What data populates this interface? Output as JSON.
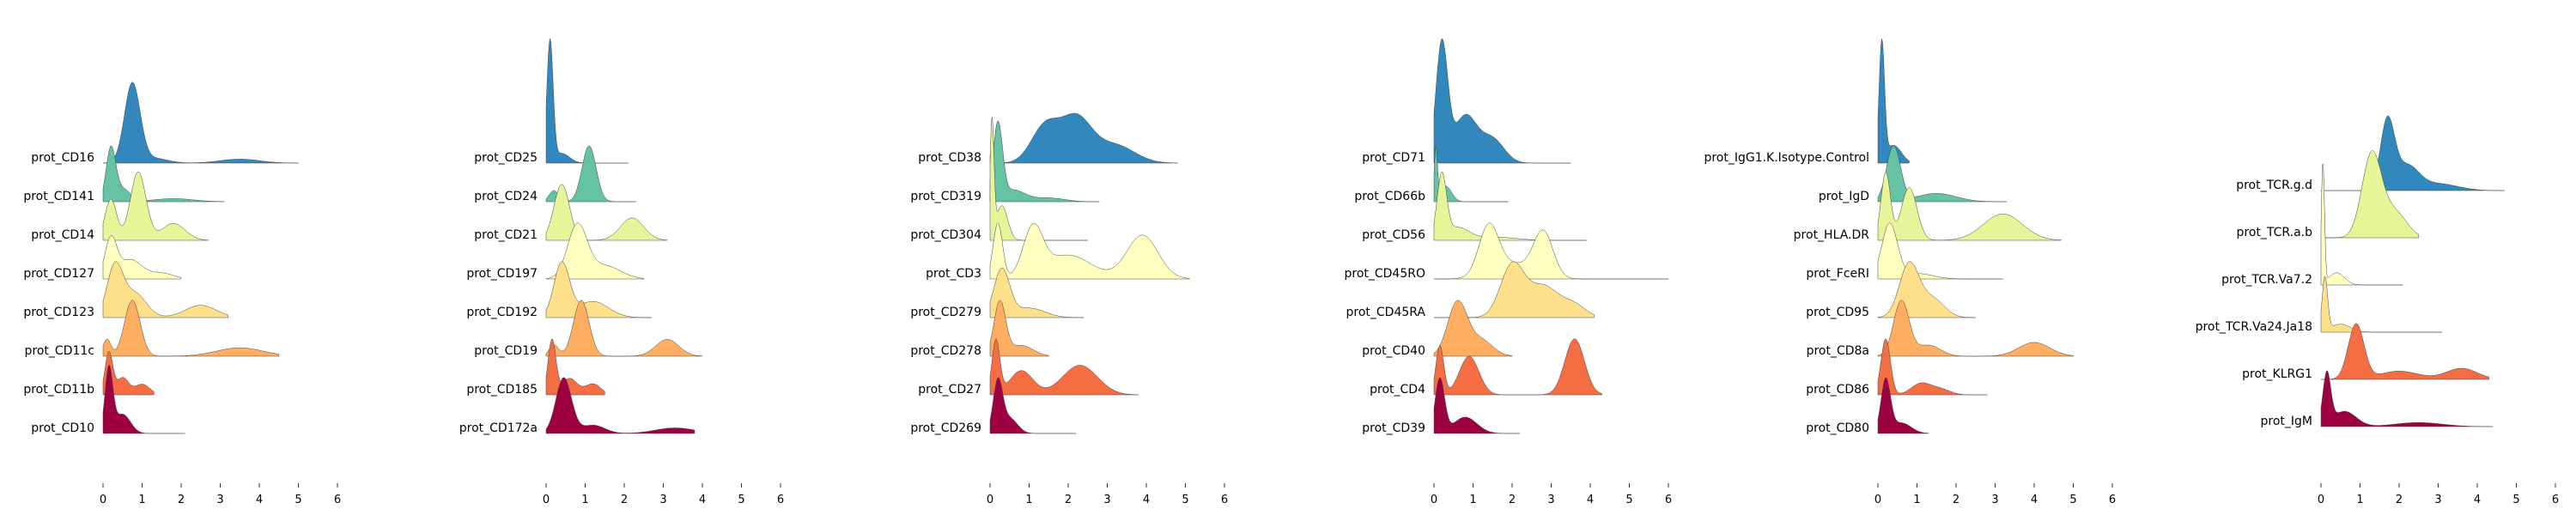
{
  "chart_data": [
    {
      "type": "ridgeline",
      "xlim": [
        0,
        6
      ],
      "x_ticks": [
        "0",
        "1",
        "2",
        "3",
        "4",
        "5",
        "6"
      ],
      "series": [
        {
          "name": "prot_CD16",
          "color": "#3288bd",
          "peaks": [
            [
              0.75,
              0.2,
              1.0
            ],
            [
              1.3,
              0.35,
              0.06
            ],
            [
              3.5,
              0.5,
              0.05
            ]
          ],
          "xmax": 5.0
        },
        {
          "name": "prot_CD141",
          "color": "#66c2a5",
          "peaks": [
            [
              0.2,
              0.12,
              1.0
            ],
            [
              0.5,
              0.2,
              0.25
            ],
            [
              1.8,
              0.5,
              0.06
            ]
          ],
          "xmax": 3.1
        },
        {
          "name": "prot_CD14",
          "color": "#e6f598",
          "peaks": [
            [
              0.2,
              0.15,
              0.6
            ],
            [
              0.9,
              0.2,
              1.0
            ],
            [
              1.8,
              0.3,
              0.25
            ]
          ],
          "xmax": 2.7
        },
        {
          "name": "prot_CD127",
          "color": "#ffffbf",
          "peaks": [
            [
              0.2,
              0.15,
              1.0
            ],
            [
              0.7,
              0.3,
              0.5
            ],
            [
              1.5,
              0.3,
              0.15
            ]
          ],
          "xmax": 2.0
        },
        {
          "name": "prot_CD123",
          "color": "#fee08b",
          "peaks": [
            [
              0.3,
              0.2,
              1.0
            ],
            [
              0.8,
              0.3,
              0.5
            ],
            [
              2.5,
              0.4,
              0.25
            ]
          ],
          "xmax": 3.2
        },
        {
          "name": "prot_CD11c",
          "color": "#fdae61",
          "peaks": [
            [
              0.1,
              0.1,
              0.3
            ],
            [
              0.75,
              0.2,
              1.0
            ],
            [
              3.5,
              0.6,
              0.15
            ]
          ],
          "xmax": 4.5
        },
        {
          "name": "prot_CD11b",
          "color": "#f46d43",
          "peaks": [
            [
              0.15,
              0.1,
              1.0
            ],
            [
              0.5,
              0.15,
              0.4
            ],
            [
              1.0,
              0.2,
              0.25
            ]
          ],
          "xmax": 1.3
        },
        {
          "name": "prot_CD10",
          "color": "#9e0142",
          "peaks": [
            [
              0.15,
              0.1,
              1.0
            ],
            [
              0.5,
              0.2,
              0.3
            ]
          ],
          "xmax": 2.1
        }
      ]
    },
    {
      "type": "ridgeline",
      "xlim": [
        0,
        6
      ],
      "x_ticks": [
        "0",
        "1",
        "2",
        "3",
        "4",
        "5",
        "6"
      ],
      "series": [
        {
          "name": "prot_CD25",
          "color": "#3288bd",
          "peaks": [
            [
              0.1,
              0.08,
              1.0
            ],
            [
              0.4,
              0.2,
              0.08
            ]
          ],
          "xmax": 2.1
        },
        {
          "name": "prot_CD24",
          "color": "#66c2a5",
          "peaks": [
            [
              0.2,
              0.12,
              0.2
            ],
            [
              1.1,
              0.18,
              1.0
            ]
          ],
          "xmax": 2.3
        },
        {
          "name": "prot_CD21",
          "color": "#e6f598",
          "peaks": [
            [
              0.4,
              0.2,
              1.0
            ],
            [
              2.2,
              0.3,
              0.4
            ]
          ],
          "xmax": 3.1
        },
        {
          "name": "prot_CD197",
          "color": "#ffffbf",
          "peaks": [
            [
              0.8,
              0.25,
              1.0
            ],
            [
              1.5,
              0.4,
              0.25
            ]
          ],
          "xmax": 2.5
        },
        {
          "name": "prot_CD192",
          "color": "#fee08b",
          "peaks": [
            [
              0.4,
              0.2,
              1.0
            ],
            [
              1.2,
              0.4,
              0.3
            ]
          ],
          "xmax": 2.7
        },
        {
          "name": "prot_CD19",
          "color": "#fdae61",
          "peaks": [
            [
              0.2,
              0.12,
              0.2
            ],
            [
              0.9,
              0.2,
              1.0
            ],
            [
              3.1,
              0.3,
              0.3
            ]
          ],
          "xmax": 4.0
        },
        {
          "name": "prot_CD185",
          "color": "#f46d43",
          "peaks": [
            [
              0.15,
              0.1,
              1.0
            ],
            [
              0.6,
              0.2,
              0.3
            ],
            [
              1.2,
              0.2,
              0.2
            ]
          ],
          "xmax": 1.5
        },
        {
          "name": "prot_CD172a",
          "color": "#9e0142",
          "peaks": [
            [
              0.45,
              0.2,
              1.0
            ],
            [
              1.2,
              0.3,
              0.15
            ],
            [
              3.3,
              0.5,
              0.1
            ]
          ],
          "xmax": 3.8
        }
      ]
    },
    {
      "type": "ridgeline",
      "xlim": [
        0,
        6
      ],
      "x_ticks": [
        "0",
        "1",
        "2",
        "3",
        "4",
        "5",
        "6"
      ],
      "series": [
        {
          "name": "prot_CD38",
          "color": "#3288bd",
          "peaks": [
            [
              0.1,
              0.08,
              0.3
            ],
            [
              1.4,
              0.35,
              0.6
            ],
            [
              2.2,
              0.4,
              0.75
            ],
            [
              3.2,
              0.5,
              0.3
            ]
          ],
          "xmax": 4.8
        },
        {
          "name": "prot_CD319",
          "color": "#66c2a5",
          "peaks": [
            [
              0.2,
              0.12,
              1.0
            ],
            [
              0.6,
              0.3,
              0.15
            ],
            [
              1.5,
              0.4,
              0.05
            ]
          ],
          "xmax": 2.8
        },
        {
          "name": "prot_CD304",
          "color": "#e6f598",
          "peaks": [
            [
              0.05,
              0.05,
              1.0
            ],
            [
              0.3,
              0.15,
              0.3
            ]
          ],
          "xmax": 2.5
        },
        {
          "name": "prot_CD3",
          "color": "#ffffbf",
          "peaks": [
            [
              0.2,
              0.12,
              0.7
            ],
            [
              1.1,
              0.25,
              0.6
            ],
            [
              2.0,
              0.6,
              0.3
            ],
            [
              3.9,
              0.4,
              0.55
            ]
          ],
          "xmax": 5.1
        },
        {
          "name": "prot_CD279",
          "color": "#fee08b",
          "peaks": [
            [
              0.3,
              0.2,
              1.0
            ],
            [
              1.0,
              0.4,
              0.2
            ]
          ],
          "xmax": 2.4
        },
        {
          "name": "prot_CD278",
          "color": "#fdae61",
          "peaks": [
            [
              0.25,
              0.15,
              1.0
            ],
            [
              0.8,
              0.3,
              0.2
            ]
          ],
          "xmax": 1.5
        },
        {
          "name": "prot_CD27",
          "color": "#f46d43",
          "peaks": [
            [
              0.15,
              0.1,
              1.0
            ],
            [
              0.8,
              0.3,
              0.45
            ],
            [
              2.3,
              0.45,
              0.55
            ]
          ],
          "xmax": 3.8
        },
        {
          "name": "prot_CD269",
          "color": "#9e0142",
          "peaks": [
            [
              0.2,
              0.12,
              1.0
            ],
            [
              0.5,
              0.2,
              0.3
            ]
          ],
          "xmax": 2.2
        }
      ]
    },
    {
      "type": "ridgeline",
      "xlim": [
        0,
        6
      ],
      "x_ticks": [
        "0",
        "1",
        "2",
        "3",
        "4",
        "5",
        "6"
      ],
      "series": [
        {
          "name": "prot_CD71",
          "color": "#3288bd",
          "peaks": [
            [
              0.2,
              0.15,
              1.0
            ],
            [
              0.8,
              0.3,
              0.4
            ],
            [
              1.5,
              0.3,
              0.2
            ]
          ],
          "xmax": 3.5
        },
        {
          "name": "prot_CD66b",
          "color": "#66c2a5",
          "peaks": [
            [
              0.05,
              0.04,
              1.0
            ],
            [
              0.3,
              0.15,
              0.3
            ]
          ],
          "xmax": 1.9
        },
        {
          "name": "prot_CD56",
          "color": "#e6f598",
          "peaks": [
            [
              0.2,
              0.12,
              1.0
            ],
            [
              0.6,
              0.3,
              0.2
            ],
            [
              1.6,
              0.5,
              0.05
            ]
          ],
          "xmax": 3.9
        },
        {
          "name": "prot_CD45RO",
          "color": "#ffffbf",
          "peaks": [
            [
              1.4,
              0.25,
              0.65
            ],
            [
              2.8,
              0.25,
              0.6
            ],
            [
              2.0,
              0.5,
              0.2
            ]
          ],
          "xmax": 6.0
        },
        {
          "name": "prot_CD45RA",
          "color": "#fee08b",
          "peaks": [
            [
              2.0,
              0.3,
              0.9
            ],
            [
              2.8,
              0.4,
              0.55
            ],
            [
              3.6,
              0.3,
              0.2
            ]
          ],
          "xmax": 4.1
        },
        {
          "name": "prot_CD40",
          "color": "#fdae61",
          "peaks": [
            [
              0.6,
              0.25,
              1.0
            ],
            [
              1.2,
              0.3,
              0.3
            ]
          ],
          "xmax": 2.0
        },
        {
          "name": "prot_CD4",
          "color": "#f46d43",
          "peaks": [
            [
              0.15,
              0.1,
              0.7
            ],
            [
              0.9,
              0.25,
              0.55
            ],
            [
              3.6,
              0.25,
              0.8
            ]
          ],
          "xmax": 4.3
        },
        {
          "name": "prot_CD39",
          "color": "#9e0142",
          "peaks": [
            [
              0.15,
              0.12,
              1.0
            ],
            [
              0.8,
              0.3,
              0.3
            ]
          ],
          "xmax": 2.2
        }
      ]
    },
    {
      "type": "ridgeline",
      "xlim": [
        0,
        6
      ],
      "x_ticks": [
        "0",
        "1",
        "2",
        "3",
        "4",
        "5",
        "6"
      ],
      "series": [
        {
          "name": "prot_IgG1.K.Isotype.Control",
          "color": "#3288bd",
          "peaks": [
            [
              0.1,
              0.07,
              1.0
            ],
            [
              0.4,
              0.2,
              0.15
            ]
          ],
          "xmax": 0.8
        },
        {
          "name": "prot_IgD",
          "color": "#66c2a5",
          "peaks": [
            [
              0.4,
              0.18,
              1.0
            ],
            [
              1.5,
              0.5,
              0.15
            ]
          ],
          "xmax": 3.3
        },
        {
          "name": "prot_HLA.DR",
          "color": "#e6f598",
          "peaks": [
            [
              0.2,
              0.12,
              0.9
            ],
            [
              0.8,
              0.2,
              0.7
            ],
            [
              3.2,
              0.5,
              0.35
            ]
          ],
          "xmax": 4.7
        },
        {
          "name": "prot_FceRI",
          "color": "#ffffbf",
          "peaks": [
            [
              0.3,
              0.2,
              1.0
            ],
            [
              1.0,
              0.4,
              0.1
            ]
          ],
          "xmax": 3.2
        },
        {
          "name": "prot_CD95",
          "color": "#fee08b",
          "peaks": [
            [
              0.8,
              0.25,
              1.0
            ],
            [
              1.4,
              0.3,
              0.35
            ]
          ],
          "xmax": 2.5
        },
        {
          "name": "prot_CD8a",
          "color": "#fdae61",
          "peaks": [
            [
              0.6,
              0.2,
              1.0
            ],
            [
              1.3,
              0.3,
              0.2
            ],
            [
              4.0,
              0.4,
              0.25
            ]
          ],
          "xmax": 5.0
        },
        {
          "name": "prot_CD86",
          "color": "#f46d43",
          "peaks": [
            [
              0.2,
              0.12,
              1.0
            ],
            [
              1.1,
              0.25,
              0.2
            ],
            [
              1.6,
              0.25,
              0.1
            ]
          ],
          "xmax": 2.8
        },
        {
          "name": "prot_CD80",
          "color": "#9e0142",
          "peaks": [
            [
              0.2,
              0.12,
              1.0
            ],
            [
              0.6,
              0.25,
              0.2
            ]
          ],
          "xmax": 1.3
        }
      ]
    },
    {
      "type": "ridgeline",
      "xlim": [
        0,
        6
      ],
      "x_ticks": [
        "0",
        "1",
        "2",
        "3",
        "4",
        "5",
        "6"
      ],
      "series": [
        {
          "name": "prot_TCR.g.d",
          "color": "#3288bd",
          "peaks": [
            [
              1.7,
              0.18,
              1.0
            ],
            [
              2.2,
              0.3,
              0.35
            ],
            [
              3.0,
              0.5,
              0.1
            ]
          ],
          "xmax": 4.7
        },
        {
          "name": "prot_TCR.a.b",
          "color": "#e6f598",
          "peaks": [
            [
              1.3,
              0.25,
              1.0
            ],
            [
              1.9,
              0.3,
              0.3
            ]
          ],
          "xmax": 2.5
        },
        {
          "name": "prot_TCR.Va7.2",
          "color": "#ffffbf",
          "peaks": [
            [
              0.05,
              0.04,
              1.0
            ],
            [
              0.4,
              0.2,
              0.1
            ]
          ],
          "xmax": 2.1
        },
        {
          "name": "prot_TCR.Va24.Ja18",
          "color": "#fee08b",
          "peaks": [
            [
              0.1,
              0.07,
              1.0
            ],
            [
              0.5,
              0.25,
              0.15
            ]
          ],
          "xmax": 3.1
        },
        {
          "name": "prot_KLRG1",
          "color": "#f46d43",
          "peaks": [
            [
              0.9,
              0.2,
              1.0
            ],
            [
              2.0,
              0.5,
              0.15
            ],
            [
              3.6,
              0.4,
              0.2
            ]
          ],
          "xmax": 4.3
        },
        {
          "name": "prot_IgM",
          "color": "#9e0142",
          "peaks": [
            [
              0.15,
              0.1,
              1.0
            ],
            [
              0.6,
              0.3,
              0.3
            ],
            [
              2.5,
              0.6,
              0.08
            ]
          ],
          "xmax": 4.4
        }
      ]
    }
  ]
}
